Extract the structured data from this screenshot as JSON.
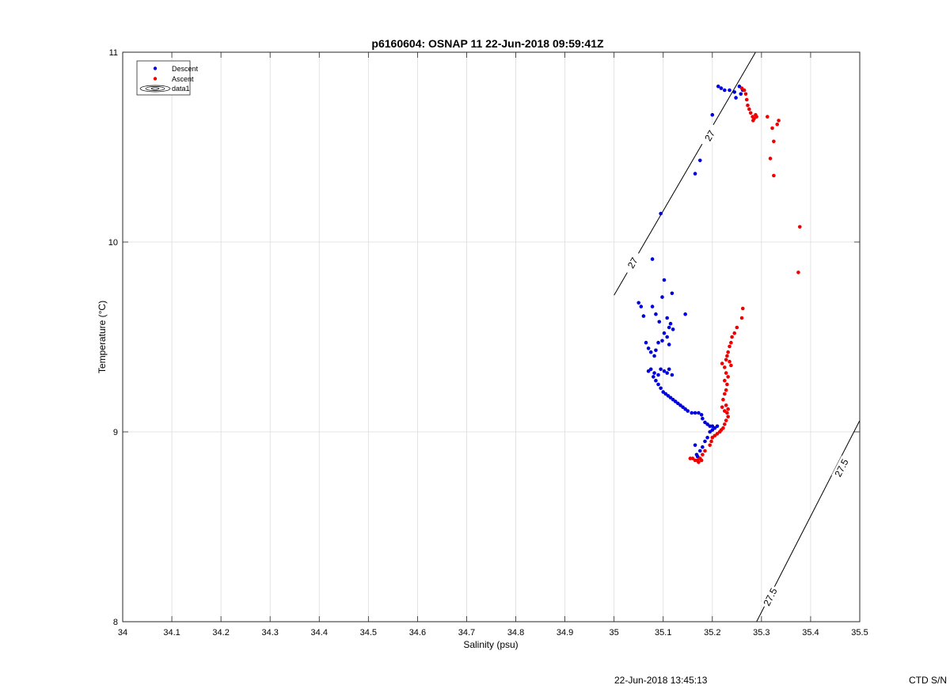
{
  "footer": {
    "timestamp": "22-Jun-2018 13:45:13",
    "ctd_label": "CTD S/N"
  },
  "chart_data": {
    "type": "scatter",
    "title": "p6160604: OSNAP 11 22-Jun-2018 09:59:41Z",
    "xlabel": "Salinity (psu)",
    "ylabel": "Temperature (°C)",
    "xlim": [
      34,
      35.5
    ],
    "ylim": [
      8,
      11
    ],
    "xticks": [
      34,
      34.1,
      34.2,
      34.3,
      34.4,
      34.5,
      34.6,
      34.7,
      34.8,
      34.9,
      35,
      35.1,
      35.2,
      35.3,
      35.4,
      35.5
    ],
    "xtick_labels": [
      "34",
      "34.1",
      "34.2",
      "34.3",
      "34.4",
      "34.5",
      "34.6",
      "34.7",
      "34.8",
      "34.9",
      "35",
      "35.1",
      "35.2",
      "35.3",
      "35.4",
      "35.5"
    ],
    "yticks": [
      8,
      9,
      10,
      11
    ],
    "ytick_labels": [
      "8",
      "9",
      "10",
      "11"
    ],
    "grid": true,
    "legend_position": "top-left",
    "legend": [
      "Descent",
      "Ascent",
      "data1"
    ],
    "series": [
      {
        "name": "Descent",
        "color": "#0000dd",
        "points": [
          [
            35.212,
            10.82
          ],
          [
            35.218,
            10.81
          ],
          [
            35.225,
            10.8
          ],
          [
            35.235,
            10.8
          ],
          [
            35.245,
            10.79
          ],
          [
            35.255,
            10.82
          ],
          [
            35.248,
            10.76
          ],
          [
            35.258,
            10.78
          ],
          [
            35.262,
            10.8
          ],
          [
            35.2,
            10.67
          ],
          [
            35.175,
            10.43
          ],
          [
            35.165,
            10.36
          ],
          [
            35.095,
            10.15
          ],
          [
            35.078,
            9.91
          ],
          [
            35.102,
            9.8
          ],
          [
            35.098,
            9.71
          ],
          [
            35.118,
            9.73
          ],
          [
            35.05,
            9.68
          ],
          [
            35.055,
            9.66
          ],
          [
            35.06,
            9.61
          ],
          [
            35.078,
            9.66
          ],
          [
            35.085,
            9.62
          ],
          [
            35.092,
            9.58
          ],
          [
            35.108,
            9.6
          ],
          [
            35.115,
            9.57
          ],
          [
            35.12,
            9.54
          ],
          [
            35.112,
            9.55
          ],
          [
            35.102,
            9.52
          ],
          [
            35.098,
            9.48
          ],
          [
            35.108,
            9.5
          ],
          [
            35.112,
            9.46
          ],
          [
            35.09,
            9.47
          ],
          [
            35.085,
            9.43
          ],
          [
            35.065,
            9.47
          ],
          [
            35.07,
            9.44
          ],
          [
            35.075,
            9.42
          ],
          [
            35.082,
            9.4
          ],
          [
            35.145,
            9.62
          ],
          [
            35.07,
            9.32
          ],
          [
            35.075,
            9.33
          ],
          [
            35.082,
            9.31
          ],
          [
            35.09,
            9.3
          ],
          [
            35.095,
            9.33
          ],
          [
            35.102,
            9.32
          ],
          [
            35.108,
            9.31
          ],
          [
            35.112,
            9.33
          ],
          [
            35.118,
            9.3
          ],
          [
            35.08,
            9.29
          ],
          [
            35.085,
            9.27
          ],
          [
            35.09,
            9.25
          ],
          [
            35.095,
            9.23
          ],
          [
            35.1,
            9.21
          ],
          [
            35.105,
            9.2
          ],
          [
            35.11,
            9.19
          ],
          [
            35.115,
            9.18
          ],
          [
            35.12,
            9.17
          ],
          [
            35.125,
            9.16
          ],
          [
            35.13,
            9.15
          ],
          [
            35.135,
            9.14
          ],
          [
            35.14,
            9.13
          ],
          [
            35.145,
            9.12
          ],
          [
            35.15,
            9.11
          ],
          [
            35.158,
            9.1
          ],
          [
            35.165,
            9.1
          ],
          [
            35.172,
            9.1
          ],
          [
            35.178,
            9.09
          ],
          [
            35.18,
            9.07
          ],
          [
            35.185,
            9.05
          ],
          [
            35.19,
            9.04
          ],
          [
            35.195,
            9.03
          ],
          [
            35.2,
            9.03
          ],
          [
            35.205,
            9.02
          ],
          [
            35.21,
            9.03
          ],
          [
            35.2,
            9.01
          ],
          [
            35.195,
            9.0
          ],
          [
            35.19,
            8.97
          ],
          [
            35.185,
            8.95
          ],
          [
            35.18,
            8.92
          ],
          [
            35.175,
            8.9
          ],
          [
            35.17,
            8.87
          ],
          [
            35.165,
            8.93
          ],
          [
            35.168,
            8.88
          ]
        ]
      },
      {
        "name": "Ascent",
        "color": "#ee0000",
        "points": [
          [
            35.26,
            10.81
          ],
          [
            35.265,
            10.8
          ],
          [
            35.268,
            10.78
          ],
          [
            35.27,
            10.75
          ],
          [
            35.272,
            10.72
          ],
          [
            35.275,
            10.7
          ],
          [
            35.278,
            10.68
          ],
          [
            35.282,
            10.66
          ],
          [
            35.285,
            10.65
          ],
          [
            35.29,
            10.66
          ],
          [
            35.288,
            10.67
          ],
          [
            35.283,
            10.64
          ],
          [
            35.312,
            10.66
          ],
          [
            35.322,
            10.6
          ],
          [
            35.325,
            10.53
          ],
          [
            35.332,
            10.62
          ],
          [
            35.335,
            10.64
          ],
          [
            35.318,
            10.44
          ],
          [
            35.325,
            10.35
          ],
          [
            35.378,
            10.08
          ],
          [
            35.375,
            9.84
          ],
          [
            35.262,
            9.65
          ],
          [
            35.26,
            9.6
          ],
          [
            35.25,
            9.55
          ],
          [
            35.245,
            9.52
          ],
          [
            35.24,
            9.5
          ],
          [
            35.238,
            9.47
          ],
          [
            35.235,
            9.45
          ],
          [
            35.232,
            9.42
          ],
          [
            35.23,
            9.4
          ],
          [
            35.228,
            9.38
          ],
          [
            35.235,
            9.37
          ],
          [
            35.238,
            9.35
          ],
          [
            35.225,
            9.34
          ],
          [
            35.22,
            9.36
          ],
          [
            35.228,
            9.31
          ],
          [
            35.232,
            9.29
          ],
          [
            35.225,
            9.27
          ],
          [
            35.23,
            9.25
          ],
          [
            35.228,
            9.22
          ],
          [
            35.225,
            9.2
          ],
          [
            35.222,
            9.17
          ],
          [
            35.228,
            9.14
          ],
          [
            35.232,
            9.12
          ],
          [
            35.225,
            9.11
          ],
          [
            35.22,
            9.13
          ],
          [
            35.23,
            9.1
          ],
          [
            35.232,
            9.08
          ],
          [
            35.228,
            9.06
          ],
          [
            35.225,
            9.04
          ],
          [
            35.222,
            9.02
          ],
          [
            35.218,
            9.01
          ],
          [
            35.215,
            9.0
          ],
          [
            35.21,
            8.99
          ],
          [
            35.205,
            8.98
          ],
          [
            35.2,
            8.97
          ],
          [
            35.198,
            8.95
          ],
          [
            35.195,
            8.93
          ],
          [
            35.185,
            8.9
          ],
          [
            35.18,
            8.88
          ],
          [
            35.175,
            8.86
          ],
          [
            35.17,
            8.85
          ],
          [
            35.165,
            8.85
          ],
          [
            35.16,
            8.86
          ],
          [
            35.155,
            8.86
          ],
          [
            35.172,
            8.84
          ],
          [
            35.178,
            8.85
          ]
        ]
      }
    ],
    "contours": [
      {
        "label": "27",
        "points": [
          [
            35.0,
            9.72
          ],
          [
            35.288,
            11.0
          ]
        ],
        "label_positions": [
          [
            35.038,
            9.89
          ],
          [
            35.195,
            10.56
          ]
        ]
      },
      {
        "label": "27.5",
        "points": [
          [
            35.29,
            8.0
          ],
          [
            35.5,
            9.06
          ]
        ],
        "label_positions": [
          [
            35.318,
            8.13
          ],
          [
            35.463,
            8.81
          ]
        ]
      }
    ]
  }
}
